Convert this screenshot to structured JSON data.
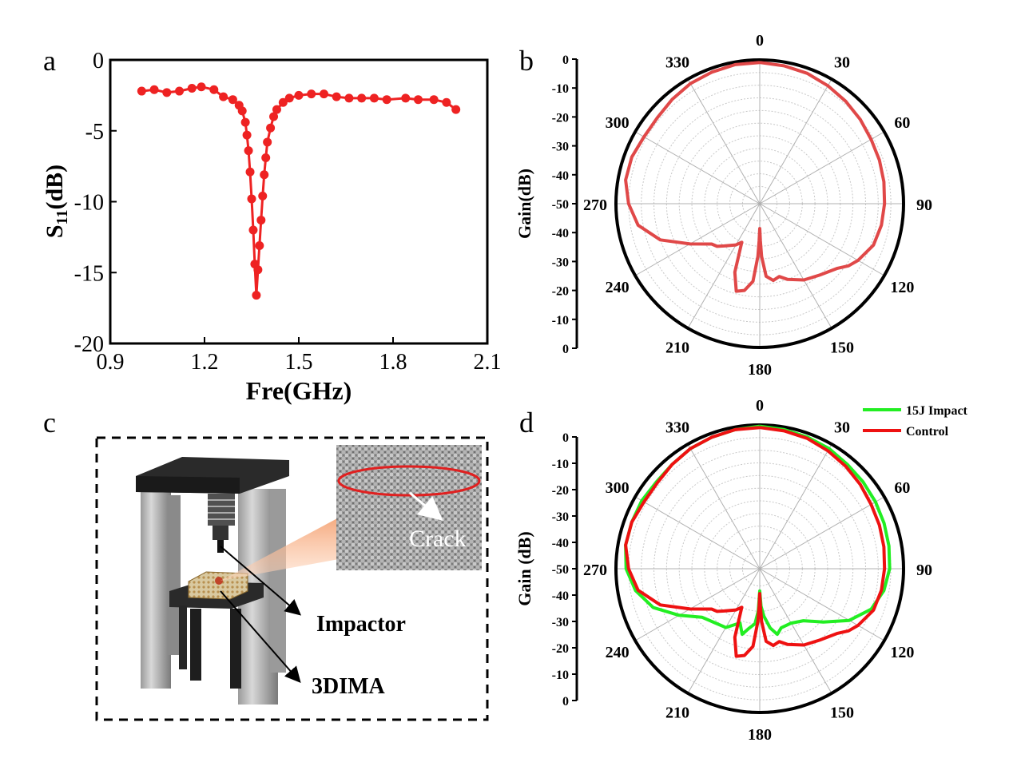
{
  "panel_labels": {
    "a": "a",
    "b": "b",
    "c": "c",
    "d": "d"
  },
  "colors": {
    "s11": "#ee2222",
    "polar_b": "#e04848",
    "impact": "#22ee22",
    "control": "#ee1111",
    "ellipse": "#e02020"
  },
  "chart_data": [
    {
      "panel": "a",
      "type": "line",
      "xlabel": "Fre(GHz)",
      "ylabel_main": "S",
      "ylabel_sub": "11",
      "ylabel_tail": "(dB)",
      "xlim": [
        0.9,
        2.1
      ],
      "ylim": [
        -20,
        0
      ],
      "xticks": [
        "0.9",
        "1.2",
        "1.5",
        "1.8",
        "2.1"
      ],
      "yticks": [
        "0",
        "-5",
        "-10",
        "-15",
        "-20"
      ],
      "series": [
        {
          "x": [
            1.0,
            1.04,
            1.08,
            1.12,
            1.16,
            1.19,
            1.23,
            1.26,
            1.29,
            1.31,
            1.32,
            1.33,
            1.335,
            1.34,
            1.345,
            1.35,
            1.355,
            1.36,
            1.365,
            1.37,
            1.375,
            1.38,
            1.385,
            1.39,
            1.395,
            1.4,
            1.41,
            1.42,
            1.43,
            1.45,
            1.47,
            1.5,
            1.54,
            1.58,
            1.62,
            1.66,
            1.7,
            1.74,
            1.78,
            1.84,
            1.88,
            1.93,
            1.97,
            2.0
          ],
          "y": [
            -2.2,
            -2.1,
            -2.3,
            -2.2,
            -2.0,
            -1.9,
            -2.1,
            -2.6,
            -2.8,
            -3.2,
            -3.6,
            -4.4,
            -5.3,
            -6.4,
            -7.9,
            -9.8,
            -12.0,
            -14.4,
            -16.6,
            -14.8,
            -13.1,
            -11.3,
            -9.6,
            -8.1,
            -6.9,
            -5.8,
            -4.8,
            -4.0,
            -3.5,
            -3.0,
            -2.7,
            -2.5,
            -2.4,
            -2.4,
            -2.6,
            -2.7,
            -2.7,
            -2.7,
            -2.8,
            -2.7,
            -2.8,
            -2.8,
            -3.0,
            -3.5
          ]
        }
      ]
    },
    {
      "panel": "b",
      "type": "polar",
      "rlabel": "Gain(dB)",
      "angle_ticks": [
        "0",
        "30",
        "60",
        "90",
        "120",
        "150",
        "180",
        "210",
        "240",
        "270",
        "300",
        "330"
      ],
      "r_ticks_upper": [
        "0",
        "-10",
        "-20",
        "-30",
        "-40",
        "-50"
      ],
      "r_ticks_lower": [
        "-40",
        "-30",
        "-20",
        "-10",
        "0"
      ],
      "rlim": [
        -50,
        0
      ],
      "series": [
        {
          "angles": [
            0,
            10,
            20,
            30,
            40,
            50,
            60,
            70,
            80,
            90,
            100,
            110,
            120,
            125,
            130,
            140,
            150,
            160,
            165,
            170,
            175,
            178,
            179,
            180,
            181,
            182,
            185,
            190,
            195,
            200,
            205,
            210,
            220,
            225,
            230,
            240,
            250,
            260,
            270,
            280,
            290,
            300,
            310,
            320,
            330,
            340,
            350,
            360
          ],
          "gains": [
            -1,
            -1.5,
            -2,
            -3,
            -4,
            -5,
            -6,
            -6.5,
            -7,
            -7.5,
            -8,
            -9,
            -12,
            -14,
            -17,
            -20,
            -22,
            -25,
            -27,
            -26,
            -28,
            -36,
            -42,
            -47,
            -42,
            -36,
            -26,
            -22,
            -21,
            -28,
            -40,
            -38,
            -35,
            -33,
            -32,
            -25,
            -15,
            -8,
            -5,
            -3,
            -3,
            -4,
            -4,
            -3,
            -2,
            -1.5,
            -1,
            -1
          ]
        }
      ]
    },
    {
      "panel": "d",
      "type": "polar",
      "rlabel": "Gain (dB)",
      "angle_ticks": [
        "0",
        "30",
        "60",
        "90",
        "120",
        "150",
        "180",
        "210",
        "240",
        "270",
        "300",
        "330"
      ],
      "r_ticks_upper": [
        "0",
        "-10",
        "-20",
        "-30",
        "-40",
        "-50"
      ],
      "r_ticks_lower": [
        "-40",
        "-30",
        "-20",
        "-10",
        "0"
      ],
      "rlim": [
        -50,
        0
      ],
      "legend_position": "top-right",
      "series": [
        {
          "name": "15J Impact",
          "angles": [
            0,
            10,
            20,
            30,
            40,
            50,
            60,
            70,
            80,
            90,
            100,
            110,
            120,
            130,
            140,
            150,
            160,
            165,
            170,
            175,
            178,
            180,
            182,
            185,
            190,
            195,
            200,
            210,
            220,
            230,
            240,
            250,
            260,
            270,
            280,
            290,
            300,
            310,
            320,
            330,
            340,
            350,
            360
          ],
          "gains": [
            -0.5,
            -1,
            -1.5,
            -2,
            -3,
            -3.5,
            -4,
            -4.5,
            -5,
            -5.5,
            -7,
            -10,
            -16,
            -24,
            -30,
            -32,
            -32,
            -30,
            -33,
            -38,
            -42,
            -48,
            -40,
            -35,
            -33,
            -30,
            -34,
            -30,
            -29,
            -27,
            -20,
            -12,
            -7,
            -4,
            -3,
            -3,
            -3,
            -3.5,
            -3,
            -2,
            -1.5,
            -1,
            -0.5
          ]
        },
        {
          "name": "Control",
          "angles": [
            0,
            10,
            20,
            30,
            40,
            50,
            60,
            70,
            80,
            90,
            100,
            110,
            120,
            125,
            130,
            140,
            150,
            160,
            165,
            170,
            175,
            178,
            179,
            180,
            181,
            182,
            185,
            190,
            195,
            200,
            205,
            210,
            220,
            225,
            230,
            240,
            250,
            260,
            270,
            280,
            290,
            300,
            310,
            320,
            330,
            340,
            350,
            360
          ],
          "gains": [
            -1,
            -1.5,
            -2,
            -3,
            -4,
            -5,
            -6,
            -6.5,
            -7,
            -7.5,
            -8,
            -9,
            -12,
            -14,
            -17,
            -20,
            -22,
            -25,
            -27,
            -26,
            -28,
            -36,
            -42,
            -47,
            -42,
            -36,
            -26,
            -22,
            -21,
            -28,
            -40,
            -38,
            -35,
            -33,
            -32,
            -25,
            -15,
            -8,
            -5,
            -3,
            -3,
            -4,
            -4,
            -3,
            -2,
            -1.5,
            -1,
            -1
          ]
        }
      ]
    }
  ],
  "panel_c": {
    "inset_label": "Crack",
    "label_impactor": "Impactor",
    "label_sample": "3DIMA"
  }
}
